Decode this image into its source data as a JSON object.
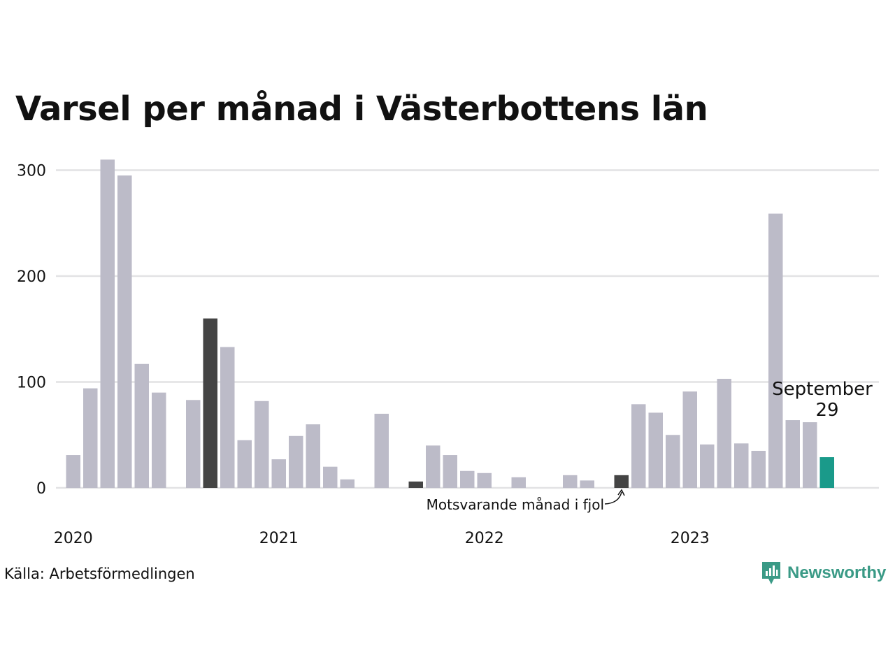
{
  "title": "Varsel per månad i Västerbottens län",
  "source": "Källa: Arbetsförmedlingen",
  "brand": {
    "name": "Newsworthy",
    "icon": "newsworthy-logo-icon"
  },
  "annotation": {
    "text": "Motsvarande månad i fjol"
  },
  "callout": {
    "month": "September",
    "value": "29"
  },
  "colors": {
    "default": "#bcbbc8",
    "highlight_prev_year": "#444444",
    "current": "#1a9a8a",
    "grid": "#e2e2e4",
    "brand": "#3a9a86"
  },
  "chart_data": {
    "type": "bar",
    "title": "Varsel per månad i Västerbottens län",
    "xlabel": "",
    "ylabel": "",
    "ylim": [
      0,
      300
    ],
    "yticks": [
      0,
      100,
      200,
      300
    ],
    "x_tick_labels": [
      "2020",
      "2021",
      "2022",
      "2023"
    ],
    "grid": true,
    "categories": [
      "2020-01",
      "2020-02",
      "2020-03",
      "2020-04",
      "2020-05",
      "2020-06",
      "2020-07",
      "2020-08",
      "2020-09",
      "2020-10",
      "2020-11",
      "2020-12",
      "2021-01",
      "2021-02",
      "2021-03",
      "2021-04",
      "2021-05",
      "2021-06",
      "2021-07",
      "2021-08",
      "2021-09",
      "2021-10",
      "2021-11",
      "2021-12",
      "2022-01",
      "2022-02",
      "2022-03",
      "2022-04",
      "2022-05",
      "2022-06",
      "2022-07",
      "2022-08",
      "2022-09",
      "2022-10",
      "2022-11",
      "2022-12",
      "2023-01",
      "2023-02",
      "2023-03",
      "2023-04",
      "2023-05",
      "2023-06",
      "2023-07",
      "2023-08",
      "2023-09"
    ],
    "values": [
      31,
      94,
      310,
      295,
      117,
      90,
      0,
      83,
      160,
      133,
      45,
      82,
      27,
      49,
      60,
      20,
      8,
      0,
      70,
      0,
      6,
      40,
      31,
      16,
      14,
      0,
      10,
      0,
      0,
      12,
      7,
      0,
      12,
      79,
      71,
      50,
      91,
      41,
      103,
      42,
      35,
      259,
      64,
      62,
      29
    ],
    "highlight_prev_year": [
      "2020-09",
      "2021-09",
      "2022-09"
    ],
    "current": "2023-09"
  }
}
